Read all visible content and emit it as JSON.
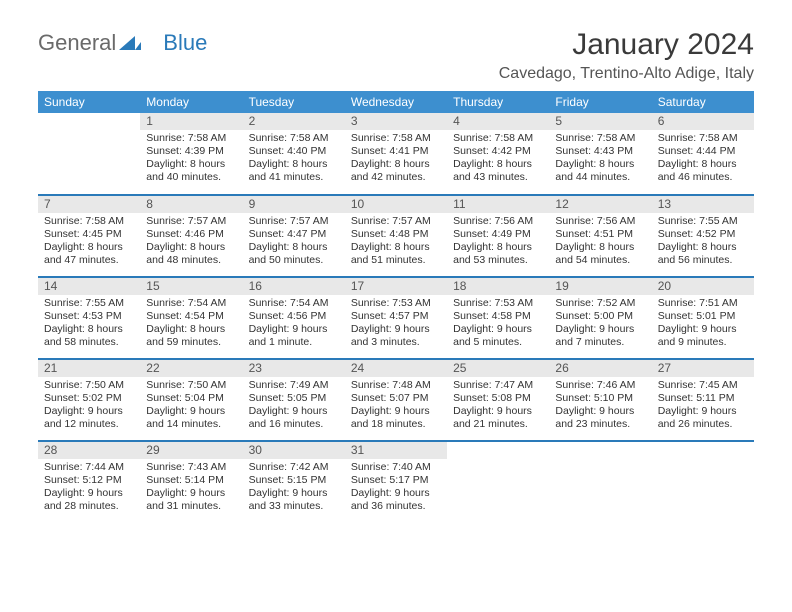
{
  "logo": {
    "text1": "General",
    "text2": "Blue"
  },
  "title": "January 2024",
  "location": "Cavedago, Trentino-Alto Adige, Italy",
  "colors": {
    "header_bg": "#3d8fcf",
    "header_text": "#ffffff",
    "row_separator": "#2a7ab9",
    "daynum_bg": "#e8e8e8",
    "logo_blue": "#2a7ab9",
    "logo_gray": "#6a6a6a"
  },
  "day_headers": [
    "Sunday",
    "Monday",
    "Tuesday",
    "Wednesday",
    "Thursday",
    "Friday",
    "Saturday"
  ],
  "weeks": [
    [
      null,
      {
        "n": "1",
        "sr": "Sunrise: 7:58 AM",
        "ss": "Sunset: 4:39 PM",
        "d1": "Daylight: 8 hours",
        "d2": "and 40 minutes."
      },
      {
        "n": "2",
        "sr": "Sunrise: 7:58 AM",
        "ss": "Sunset: 4:40 PM",
        "d1": "Daylight: 8 hours",
        "d2": "and 41 minutes."
      },
      {
        "n": "3",
        "sr": "Sunrise: 7:58 AM",
        "ss": "Sunset: 4:41 PM",
        "d1": "Daylight: 8 hours",
        "d2": "and 42 minutes."
      },
      {
        "n": "4",
        "sr": "Sunrise: 7:58 AM",
        "ss": "Sunset: 4:42 PM",
        "d1": "Daylight: 8 hours",
        "d2": "and 43 minutes."
      },
      {
        "n": "5",
        "sr": "Sunrise: 7:58 AM",
        "ss": "Sunset: 4:43 PM",
        "d1": "Daylight: 8 hours",
        "d2": "and 44 minutes."
      },
      {
        "n": "6",
        "sr": "Sunrise: 7:58 AM",
        "ss": "Sunset: 4:44 PM",
        "d1": "Daylight: 8 hours",
        "d2": "and 46 minutes."
      }
    ],
    [
      {
        "n": "7",
        "sr": "Sunrise: 7:58 AM",
        "ss": "Sunset: 4:45 PM",
        "d1": "Daylight: 8 hours",
        "d2": "and 47 minutes."
      },
      {
        "n": "8",
        "sr": "Sunrise: 7:57 AM",
        "ss": "Sunset: 4:46 PM",
        "d1": "Daylight: 8 hours",
        "d2": "and 48 minutes."
      },
      {
        "n": "9",
        "sr": "Sunrise: 7:57 AM",
        "ss": "Sunset: 4:47 PM",
        "d1": "Daylight: 8 hours",
        "d2": "and 50 minutes."
      },
      {
        "n": "10",
        "sr": "Sunrise: 7:57 AM",
        "ss": "Sunset: 4:48 PM",
        "d1": "Daylight: 8 hours",
        "d2": "and 51 minutes."
      },
      {
        "n": "11",
        "sr": "Sunrise: 7:56 AM",
        "ss": "Sunset: 4:49 PM",
        "d1": "Daylight: 8 hours",
        "d2": "and 53 minutes."
      },
      {
        "n": "12",
        "sr": "Sunrise: 7:56 AM",
        "ss": "Sunset: 4:51 PM",
        "d1": "Daylight: 8 hours",
        "d2": "and 54 minutes."
      },
      {
        "n": "13",
        "sr": "Sunrise: 7:55 AM",
        "ss": "Sunset: 4:52 PM",
        "d1": "Daylight: 8 hours",
        "d2": "and 56 minutes."
      }
    ],
    [
      {
        "n": "14",
        "sr": "Sunrise: 7:55 AM",
        "ss": "Sunset: 4:53 PM",
        "d1": "Daylight: 8 hours",
        "d2": "and 58 minutes."
      },
      {
        "n": "15",
        "sr": "Sunrise: 7:54 AM",
        "ss": "Sunset: 4:54 PM",
        "d1": "Daylight: 8 hours",
        "d2": "and 59 minutes."
      },
      {
        "n": "16",
        "sr": "Sunrise: 7:54 AM",
        "ss": "Sunset: 4:56 PM",
        "d1": "Daylight: 9 hours",
        "d2": "and 1 minute."
      },
      {
        "n": "17",
        "sr": "Sunrise: 7:53 AM",
        "ss": "Sunset: 4:57 PM",
        "d1": "Daylight: 9 hours",
        "d2": "and 3 minutes."
      },
      {
        "n": "18",
        "sr": "Sunrise: 7:53 AM",
        "ss": "Sunset: 4:58 PM",
        "d1": "Daylight: 9 hours",
        "d2": "and 5 minutes."
      },
      {
        "n": "19",
        "sr": "Sunrise: 7:52 AM",
        "ss": "Sunset: 5:00 PM",
        "d1": "Daylight: 9 hours",
        "d2": "and 7 minutes."
      },
      {
        "n": "20",
        "sr": "Sunrise: 7:51 AM",
        "ss": "Sunset: 5:01 PM",
        "d1": "Daylight: 9 hours",
        "d2": "and 9 minutes."
      }
    ],
    [
      {
        "n": "21",
        "sr": "Sunrise: 7:50 AM",
        "ss": "Sunset: 5:02 PM",
        "d1": "Daylight: 9 hours",
        "d2": "and 12 minutes."
      },
      {
        "n": "22",
        "sr": "Sunrise: 7:50 AM",
        "ss": "Sunset: 5:04 PM",
        "d1": "Daylight: 9 hours",
        "d2": "and 14 minutes."
      },
      {
        "n": "23",
        "sr": "Sunrise: 7:49 AM",
        "ss": "Sunset: 5:05 PM",
        "d1": "Daylight: 9 hours",
        "d2": "and 16 minutes."
      },
      {
        "n": "24",
        "sr": "Sunrise: 7:48 AM",
        "ss": "Sunset: 5:07 PM",
        "d1": "Daylight: 9 hours",
        "d2": "and 18 minutes."
      },
      {
        "n": "25",
        "sr": "Sunrise: 7:47 AM",
        "ss": "Sunset: 5:08 PM",
        "d1": "Daylight: 9 hours",
        "d2": "and 21 minutes."
      },
      {
        "n": "26",
        "sr": "Sunrise: 7:46 AM",
        "ss": "Sunset: 5:10 PM",
        "d1": "Daylight: 9 hours",
        "d2": "and 23 minutes."
      },
      {
        "n": "27",
        "sr": "Sunrise: 7:45 AM",
        "ss": "Sunset: 5:11 PM",
        "d1": "Daylight: 9 hours",
        "d2": "and 26 minutes."
      }
    ],
    [
      {
        "n": "28",
        "sr": "Sunrise: 7:44 AM",
        "ss": "Sunset: 5:12 PM",
        "d1": "Daylight: 9 hours",
        "d2": "and 28 minutes."
      },
      {
        "n": "29",
        "sr": "Sunrise: 7:43 AM",
        "ss": "Sunset: 5:14 PM",
        "d1": "Daylight: 9 hours",
        "d2": "and 31 minutes."
      },
      {
        "n": "30",
        "sr": "Sunrise: 7:42 AM",
        "ss": "Sunset: 5:15 PM",
        "d1": "Daylight: 9 hours",
        "d2": "and 33 minutes."
      },
      {
        "n": "31",
        "sr": "Sunrise: 7:40 AM",
        "ss": "Sunset: 5:17 PM",
        "d1": "Daylight: 9 hours",
        "d2": "and 36 minutes."
      },
      null,
      null,
      null
    ]
  ]
}
